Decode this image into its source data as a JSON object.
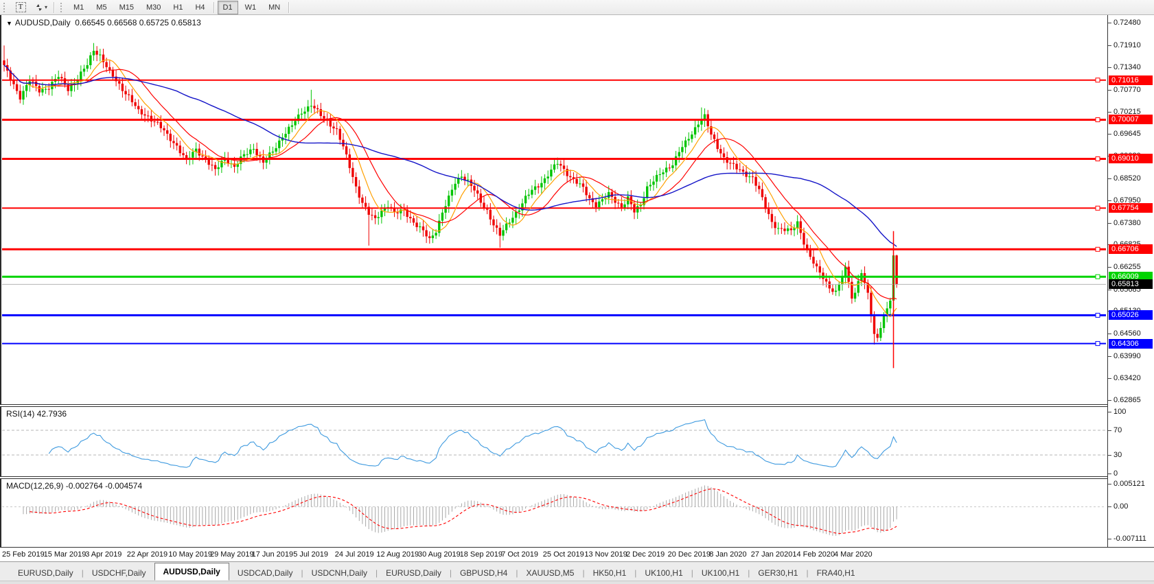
{
  "toolbar": {
    "text_tool_glyph": "T",
    "dropdown_caret": "▾",
    "timeframes": [
      "M1",
      "M5",
      "M15",
      "M30",
      "H1",
      "H4",
      "D1",
      "W1",
      "MN"
    ],
    "active_timeframe": "D1"
  },
  "chart": {
    "dropdown_glyph": "▼",
    "title": "AUDUSD,Daily",
    "ohlc": "0.66545 0.66568 0.65725 0.65813"
  },
  "rsi": {
    "name": "RSI(14)",
    "value": "42.7936",
    "ticks": [
      "100",
      "70",
      "30",
      "0"
    ],
    "tick_values": [
      100,
      70,
      30,
      0
    ],
    "levels": [
      70,
      30
    ],
    "line_color": "#3E9ADF"
  },
  "macd": {
    "name": "MACD(12,26,9)",
    "values": "-0.002764 -0.004574",
    "ticks": [
      {
        "v": 0.005121,
        "label": "0.005121"
      },
      {
        "v": 0.0,
        "label": "0.00"
      },
      {
        "v": -0.007111,
        "label": "-0.007111"
      }
    ],
    "range_max": 0.005121,
    "range_min": -0.007111,
    "hist_color": "#A8A8A8",
    "signal_color": "#FF0000"
  },
  "tabs": {
    "active_index": 2,
    "items": [
      "EURUSD,Daily",
      "USDCHF,Daily",
      "AUDUSD,Daily",
      "USDCAD,Daily",
      "USDCNH,Daily",
      "EURUSD,Daily",
      "GBPUSD,H4",
      "XAUUSD,M5",
      "HK50,H1",
      "UK100,H1",
      "UK100,H1",
      "GER30,H1",
      "FRA40,H1"
    ]
  },
  "chart_data": {
    "type": "candlestick",
    "symbol": "AUDUSD",
    "timeframe": "Daily",
    "up_color": "#00C400",
    "down_color": "#EE0000",
    "y_axis": {
      "max": 0.7248,
      "min": 0.62865,
      "ticks": [
        "0.72480",
        "0.71910",
        "0.71340",
        "0.70770",
        "0.70215",
        "0.69645",
        "0.69080",
        "0.68520",
        "0.67950",
        "0.67380",
        "0.66825",
        "0.66255",
        "0.65685",
        "0.65130",
        "0.64560",
        "0.63990",
        "0.63420",
        "0.62865"
      ],
      "tick_values": [
        0.7248,
        0.7191,
        0.7134,
        0.7077,
        0.70215,
        0.69645,
        0.6908,
        0.6852,
        0.6795,
        0.6738,
        0.66825,
        0.66255,
        0.65685,
        0.6513,
        0.6456,
        0.6399,
        0.6342,
        0.62865
      ]
    },
    "date_labels": [
      "25 Feb 2019",
      "15 Mar 2019",
      "3 Apr 2019",
      "22 Apr 2019",
      "10 May 2019",
      "29 May 2019",
      "17 Jun 2019",
      "5 Jul 2019",
      "24 Jul 2019",
      "12 Aug 2019",
      "30 Aug 2019",
      "18 Sep 2019",
      "7 Oct 2019",
      "25 Oct 2019",
      "13 Nov 2019",
      "2 Dec 2019",
      "20 Dec 2019",
      "8 Jan 2020",
      "27 Jan 2020",
      "14 Feb 2020",
      "4 Mar 2020"
    ],
    "hlines": [
      {
        "price": 0.71016,
        "label": "0.71016",
        "color": "#FF0000",
        "width": 2
      },
      {
        "price": 0.70007,
        "label": "0.70007",
        "color": "#FF0000",
        "width": 3
      },
      {
        "price": 0.6901,
        "label": "0.69010",
        "color": "#FF0000",
        "width": 3
      },
      {
        "price": 0.67754,
        "label": "0.67754",
        "color": "#FF0000",
        "width": 2
      },
      {
        "price": 0.66706,
        "label": "0.66706",
        "color": "#FF0000",
        "width": 3
      },
      {
        "price": 0.66009,
        "label": "0.66009",
        "color": "#00D400",
        "width": 3
      },
      {
        "price": 0.65026,
        "label": "0.65026",
        "color": "#0000FF",
        "width": 3
      },
      {
        "price": 0.64306,
        "label": "0.64306",
        "color": "#0000FF",
        "width": 2
      }
    ],
    "current_price": {
      "value": "0.65813",
      "price": 0.65813,
      "line_color": "#B4B4B4",
      "box_bg": "#000000"
    },
    "vline": {
      "day": 278,
      "top": 0.6717,
      "bottom": 0.6368,
      "color": "#FF0000"
    },
    "moving_averages": [
      {
        "period": 8,
        "color": "#FFA000",
        "width": 1.2
      },
      {
        "period": 16,
        "color": "#FF0000",
        "width": 1.2
      },
      {
        "period": 55,
        "color": "#1515C8",
        "width": 1.4
      }
    ],
    "num_candles": 280,
    "price_path_anchors": [
      [
        0,
        0.7135
      ],
      [
        3,
        0.709
      ],
      [
        5,
        0.706
      ],
      [
        8,
        0.71
      ],
      [
        11,
        0.7075
      ],
      [
        14,
        0.7085
      ],
      [
        17,
        0.711
      ],
      [
        20,
        0.708
      ],
      [
        23,
        0.7105
      ],
      [
        26,
        0.714
      ],
      [
        28,
        0.718
      ],
      [
        30,
        0.7165
      ],
      [
        33,
        0.712
      ],
      [
        36,
        0.709
      ],
      [
        39,
        0.706
      ],
      [
        42,
        0.702
      ],
      [
        45,
        0.701
      ],
      [
        48,
        0.699
      ],
      [
        51,
        0.696
      ],
      [
        54,
        0.6935
      ],
      [
        57,
        0.6895
      ],
      [
        60,
        0.6925
      ],
      [
        63,
        0.69
      ],
      [
        66,
        0.687
      ],
      [
        69,
        0.6905
      ],
      [
        72,
        0.688
      ],
      [
        75,
        0.691
      ],
      [
        78,
        0.693
      ],
      [
        81,
        0.689
      ],
      [
        84,
        0.692
      ],
      [
        87,
        0.696
      ],
      [
        90,
        0.6985
      ],
      [
        93,
        0.702
      ],
      [
        96,
        0.704
      ],
      [
        99,
        0.701
      ],
      [
        102,
        0.699
      ],
      [
        104,
        0.6975
      ],
      [
        106,
        0.693
      ],
      [
        108,
        0.688
      ],
      [
        110,
        0.683
      ],
      [
        112,
        0.679
      ],
      [
        114,
        0.676
      ],
      [
        116,
        0.6745
      ],
      [
        118,
        0.677
      ],
      [
        120,
        0.6785
      ],
      [
        122,
        0.676
      ],
      [
        125,
        0.677
      ],
      [
        128,
        0.674
      ],
      [
        131,
        0.6715
      ],
      [
        133,
        0.6695
      ],
      [
        135,
        0.672
      ],
      [
        137,
        0.6765
      ],
      [
        139,
        0.68
      ],
      [
        141,
        0.684
      ],
      [
        143,
        0.686
      ],
      [
        145,
        0.6845
      ],
      [
        147,
        0.682
      ],
      [
        149,
        0.679
      ],
      [
        151,
        0.677
      ],
      [
        153,
        0.6735
      ],
      [
        155,
        0.6705
      ],
      [
        157,
        0.673
      ],
      [
        159,
        0.6755
      ],
      [
        161,
        0.6775
      ],
      [
        163,
        0.68
      ],
      [
        165,
        0.682
      ],
      [
        167,
        0.6835
      ],
      [
        169,
        0.685
      ],
      [
        171,
        0.687
      ],
      [
        173,
        0.689
      ],
      [
        175,
        0.6875
      ],
      [
        177,
        0.6855
      ],
      [
        179,
        0.684
      ],
      [
        181,
        0.6825
      ],
      [
        183,
        0.68
      ],
      [
        185,
        0.6785
      ],
      [
        187,
        0.6795
      ],
      [
        189,
        0.681
      ],
      [
        191,
        0.6795
      ],
      [
        193,
        0.678
      ],
      [
        195,
        0.68
      ],
      [
        197,
        0.6765
      ],
      [
        199,
        0.6785
      ],
      [
        201,
        0.683
      ],
      [
        203,
        0.6845
      ],
      [
        205,
        0.686
      ],
      [
        207,
        0.6875
      ],
      [
        209,
        0.689
      ],
      [
        211,
        0.692
      ],
      [
        213,
        0.694
      ],
      [
        215,
        0.6965
      ],
      [
        217,
        0.6995
      ],
      [
        219,
        0.701
      ],
      [
        221,
        0.696
      ],
      [
        223,
        0.693
      ],
      [
        225,
        0.6905
      ],
      [
        227,
        0.689
      ],
      [
        229,
        0.6875
      ],
      [
        231,
        0.6865
      ],
      [
        234,
        0.6855
      ],
      [
        236,
        0.682
      ],
      [
        238,
        0.6775
      ],
      [
        240,
        0.674
      ],
      [
        242,
        0.6725
      ],
      [
        244,
        0.672
      ],
      [
        246,
        0.6715
      ],
      [
        248,
        0.674
      ],
      [
        250,
        0.669
      ],
      [
        252,
        0.665
      ],
      [
        254,
        0.662
      ],
      [
        256,
        0.66
      ],
      [
        258,
        0.6575
      ],
      [
        260,
        0.656
      ],
      [
        262,
        0.66
      ],
      [
        263,
        0.662
      ],
      [
        264,
        0.659
      ],
      [
        265,
        0.6545
      ],
      [
        266,
        0.656
      ],
      [
        267,
        0.659
      ],
      [
        268,
        0.661
      ],
      [
        269,
        0.6585
      ],
      [
        270,
        0.656
      ],
      [
        271,
        0.65
      ],
      [
        272,
        0.6455
      ],
      [
        273,
        0.6445
      ],
      [
        274,
        0.647
      ],
      [
        275,
        0.65
      ],
      [
        276,
        0.652
      ],
      [
        277,
        0.654
      ],
      [
        278,
        0.6655
      ],
      [
        279,
        0.65813
      ]
    ],
    "close_overrides": {
      "278": 0.6655,
      "279": 0.65813
    },
    "wick_overrides": {
      "0": {
        "h": 0.719
      },
      "28": {
        "h": 0.7196
      },
      "96": {
        "h": 0.7077
      },
      "114": {
        "l": 0.668
      },
      "133": {
        "l": 0.6685
      },
      "155": {
        "l": 0.6675
      },
      "218": {
        "h": 0.7032
      },
      "272": {
        "l": 0.6428
      },
      "273": {
        "l": 0.6435
      },
      "279": {
        "h": 0.66568,
        "l": 0.65725
      }
    }
  }
}
